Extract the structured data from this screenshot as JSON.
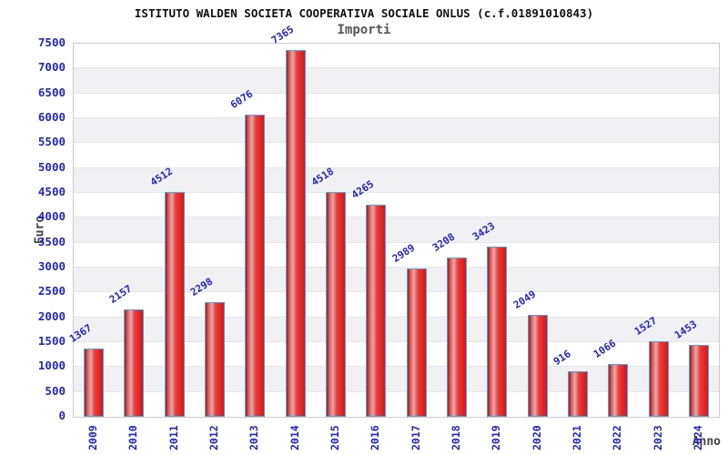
{
  "header": {
    "title": "ISTITUTO WALDEN SOCIETA COOPERATIVA SOCIALE ONLUS (c.f.01891010843)",
    "subtitle": "Importi"
  },
  "axes": {
    "y_label": "Euro",
    "x_label": "Anno",
    "y_ticks": [
      0,
      500,
      1000,
      1500,
      2000,
      2500,
      3000,
      3500,
      4000,
      4500,
      5000,
      5500,
      6000,
      6500,
      7000,
      7500
    ]
  },
  "chart_data": {
    "type": "bar",
    "title": "ISTITUTO WALDEN SOCIETA COOPERATIVA SOCIALE ONLUS (c.f.01891010843)",
    "subtitle": "Importi",
    "xlabel": "Anno",
    "ylabel": "Euro",
    "ylim": [
      0,
      7500
    ],
    "ytick_step": 500,
    "grid": "horizontal-bands-alternating",
    "legend": "none",
    "categories": [
      "2009",
      "2010",
      "2011",
      "2012",
      "2013",
      "2014",
      "2015",
      "2016",
      "2017",
      "2018",
      "2019",
      "2020",
      "2021",
      "2022",
      "2023",
      "2024"
    ],
    "values": [
      1367,
      2157,
      4512,
      2298,
      6076,
      7365,
      4518,
      4265,
      2989,
      3208,
      3423,
      2049,
      916,
      1066,
      1527,
      1453
    ],
    "bar_labels_rotated": true,
    "x_labels_rotated": true
  },
  "style": {
    "label_blue": "#2424cc",
    "bar_border_blue": "#55a0dd",
    "bar_red_dark": "#9e1a1a",
    "bar_red_light": "#efa6a6",
    "bar_red_main": "#ea2828",
    "band_gray": "#f1f1f3",
    "plot_border_gray": "#cccccc",
    "muted_text": "#444444",
    "title_color": "#111111",
    "background": "#ffffff"
  }
}
